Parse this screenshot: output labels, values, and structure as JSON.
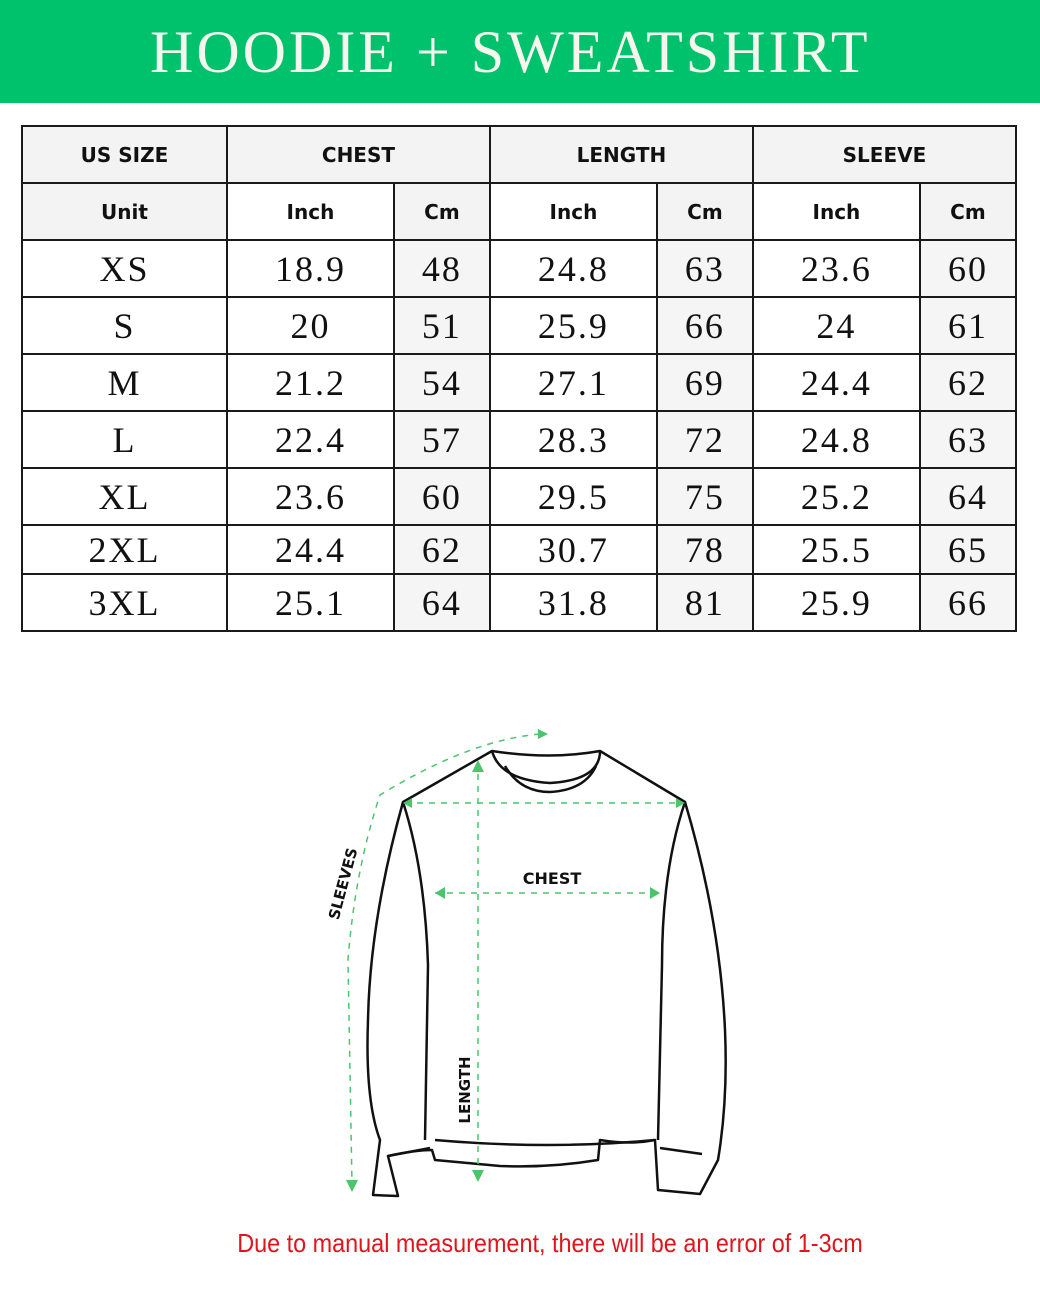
{
  "title": "HOODIE + SWEATSHIRT",
  "table": {
    "group_headers": [
      "US SIZE",
      "CHEST",
      "LENGTH",
      "SLEEVE"
    ],
    "sub_headers": [
      "Unit",
      "Inch",
      "Cm",
      "Inch",
      "Cm",
      "Inch",
      "Cm"
    ],
    "rows": [
      [
        "XS",
        "18.9",
        "48",
        "24.8",
        "63",
        "23.6",
        "60"
      ],
      [
        "S",
        "20",
        "51",
        "25.9",
        "66",
        "24",
        "61"
      ],
      [
        "M",
        "21.2",
        "54",
        "27.1",
        "69",
        "24.4",
        "62"
      ],
      [
        "L",
        "22.4",
        "57",
        "28.3",
        "72",
        "24.8",
        "63"
      ],
      [
        "XL",
        "23.6",
        "60",
        "29.5",
        "75",
        "25.2",
        "64"
      ],
      [
        "2XL",
        "24.4",
        "62",
        "30.7",
        "78",
        "25.5",
        "65"
      ],
      [
        "3XL",
        "25.1",
        "64",
        "31.8",
        "81",
        "25.9",
        "66"
      ]
    ]
  },
  "diagram": {
    "chest": "CHEST",
    "length": "LENGTH",
    "sleeves": "SLEEVES"
  },
  "note": "Due to manual measurement, there will be an error of 1-3cm",
  "colors": {
    "banner": "#00c26c",
    "note": "#e0141c",
    "measure_lines": "#4cc46c"
  }
}
